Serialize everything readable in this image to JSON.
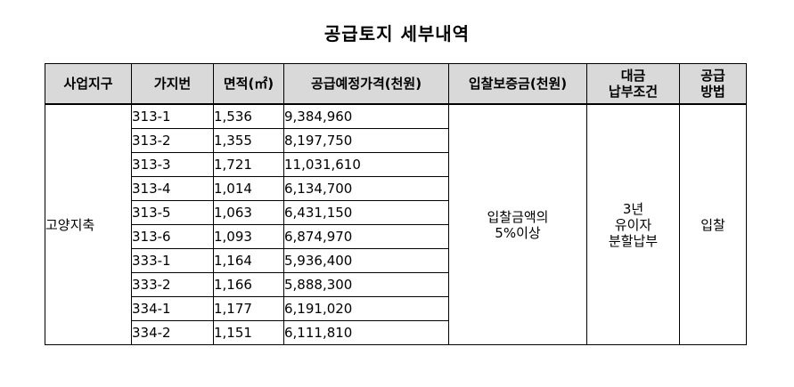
{
  "title": "공급토지 세부내역",
  "headers": {
    "district": "사업지구",
    "lot": "가지번",
    "area": "면적(㎡)",
    "price": "공급예정가격(천원)",
    "deposit": "입찰보증금(천원)",
    "payment_line1": "대금",
    "payment_line2": "납부조건",
    "method_line1": "공급",
    "method_line2": "방법"
  },
  "district": "고양지축",
  "rows": [
    {
      "lot": "313-1",
      "area": "1,536",
      "price": "9,384,960"
    },
    {
      "lot": "313-2",
      "area": "1,355",
      "price": "8,197,750"
    },
    {
      "lot": "313-3",
      "area": "1,721",
      "price": "11,031,610"
    },
    {
      "lot": "313-4",
      "area": "1,014",
      "price": "6,134,700"
    },
    {
      "lot": "313-5",
      "area": "1,063",
      "price": "6,431,150"
    },
    {
      "lot": "313-6",
      "area": "1,093",
      "price": "6,874,970"
    },
    {
      "lot": "333-1",
      "area": "1,164",
      "price": "5,936,400"
    },
    {
      "lot": "333-2",
      "area": "1,166",
      "price": "5,888,300"
    },
    {
      "lot": "334-1",
      "area": "1,177",
      "price": "6,191,020"
    },
    {
      "lot": "334-2",
      "area": "1,151",
      "price": "6,111,810"
    }
  ],
  "deposit": {
    "line1": "입찰금액의",
    "line2": "5%이상"
  },
  "payment": {
    "line1": "3년",
    "line2": "유이자",
    "line3": "분할납부"
  },
  "method": "입찰"
}
